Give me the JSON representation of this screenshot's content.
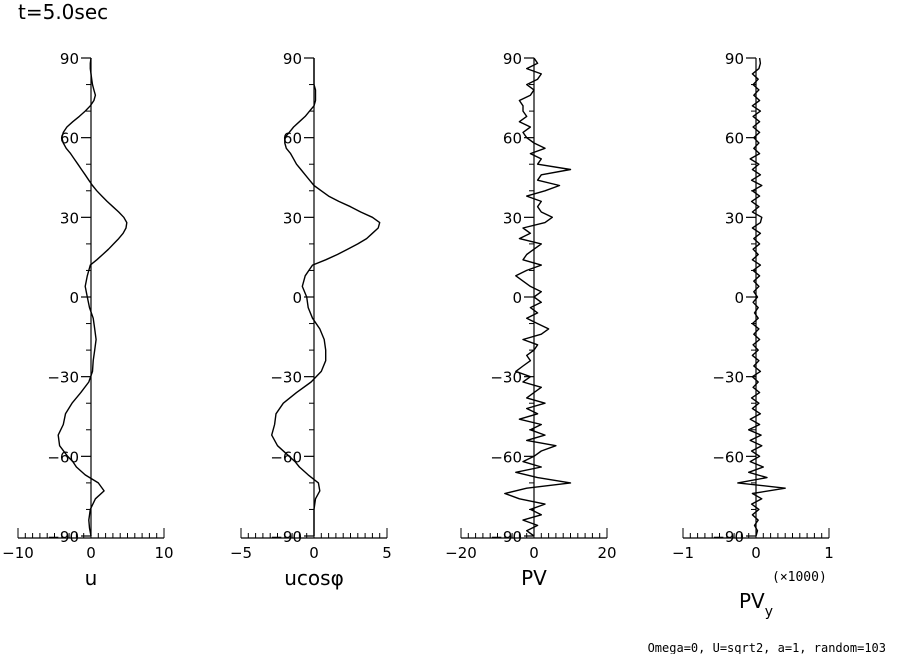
{
  "title": "t=5.0sec",
  "footer": "Omega=0, U=sqrt2, a=1, random=103",
  "chart_data": [
    {
      "type": "line",
      "xlabel": "u",
      "xlim": [
        -10,
        10
      ],
      "ylim": [
        -90,
        90
      ],
      "xticks": [
        "−10",
        "0",
        "10"
      ],
      "yticks": [
        "90",
        "60",
        "30",
        "0",
        "−30",
        "−60",
        "−90"
      ],
      "series": [
        {
          "y": [
            -90,
            -87,
            -84,
            -80,
            -76,
            -73,
            -70,
            -67,
            -64,
            -62,
            -60,
            -56,
            -52,
            -48,
            -44,
            -40,
            -36,
            -32,
            -28,
            -24,
            -20,
            -16,
            -12,
            -8,
            -4,
            0,
            4,
            8,
            12,
            14,
            16,
            18,
            20,
            22,
            24,
            26,
            28,
            30,
            32,
            34,
            36,
            38,
            40,
            42,
            44,
            46,
            48,
            50,
            52,
            54,
            56,
            58,
            60,
            62,
            64,
            66,
            68,
            70,
            72,
            74,
            76,
            78,
            80,
            82,
            84,
            86,
            88,
            90
          ],
          "x": [
            0.0,
            -0.2,
            -0.3,
            -0.1,
            0.6,
            1.8,
            1.0,
            -0.8,
            -2.0,
            -2.5,
            -3.2,
            -4.3,
            -4.5,
            -3.8,
            -3.5,
            -2.6,
            -1.4,
            -0.3,
            0.2,
            0.3,
            0.5,
            0.7,
            0.5,
            0.3,
            -0.2,
            -0.5,
            -0.8,
            -0.5,
            -0.1,
            0.8,
            1.6,
            2.4,
            3.1,
            3.8,
            4.4,
            4.8,
            4.9,
            4.5,
            3.8,
            3.0,
            2.2,
            1.5,
            0.8,
            0.2,
            -0.3,
            -0.8,
            -1.3,
            -1.8,
            -2.3,
            -2.8,
            -3.4,
            -3.8,
            -4.0,
            -3.8,
            -3.3,
            -2.5,
            -1.6,
            -0.8,
            -0.1,
            0.4,
            0.6,
            0.4,
            0.2,
            0.1,
            0.0,
            -0.1,
            -0.1,
            0.0
          ]
        }
      ]
    },
    {
      "type": "line",
      "xlabel": "ucosφ",
      "xlim": [
        -5,
        5
      ],
      "ylim": [
        -90,
        90
      ],
      "xticks": [
        "−5",
        "0",
        "5"
      ],
      "yticks": [
        "90",
        "60",
        "30",
        "0",
        "−30",
        "−60",
        "−90"
      ],
      "series": [
        {
          "y": [
            -90,
            -87,
            -84,
            -80,
            -76,
            -73,
            -70,
            -67,
            -64,
            -62,
            -60,
            -56,
            -52,
            -48,
            -44,
            -40,
            -36,
            -32,
            -28,
            -24,
            -20,
            -16,
            -12,
            -8,
            -4,
            0,
            4,
            8,
            12,
            14,
            16,
            18,
            20,
            22,
            24,
            26,
            28,
            30,
            32,
            34,
            36,
            38,
            40,
            42,
            44,
            46,
            48,
            50,
            52,
            54,
            56,
            58,
            60,
            62,
            64,
            66,
            68,
            70,
            72,
            74,
            76,
            78,
            80,
            82,
            84,
            86,
            88,
            90
          ],
          "x": [
            0.0,
            0.0,
            0.0,
            0.0,
            0.1,
            0.4,
            0.3,
            -0.4,
            -1.0,
            -1.3,
            -1.7,
            -2.5,
            -2.9,
            -2.7,
            -2.6,
            -2.1,
            -1.2,
            -0.2,
            0.5,
            0.8,
            0.8,
            0.7,
            0.4,
            -0.1,
            -0.4,
            -0.5,
            -0.8,
            -0.6,
            -0.1,
            0.8,
            1.6,
            2.3,
            3.0,
            3.6,
            4.0,
            4.4,
            4.5,
            4.0,
            3.2,
            2.5,
            1.7,
            1.0,
            0.5,
            0.0,
            -0.3,
            -0.6,
            -0.9,
            -1.2,
            -1.4,
            -1.6,
            -1.9,
            -2.0,
            -2.0,
            -1.7,
            -1.4,
            -1.0,
            -0.6,
            -0.3,
            0.0,
            0.1,
            0.1,
            0.1,
            0.0,
            0.0,
            0.0,
            0.0,
            0.0,
            0.0
          ]
        }
      ]
    },
    {
      "type": "line",
      "xlabel": "PV",
      "xlim": [
        -20,
        20
      ],
      "ylim": [
        -90,
        90
      ],
      "xticks": [
        "−20",
        "0",
        "20"
      ],
      "yticks": [
        "90",
        "60",
        "30",
        "0",
        "−30",
        "−60",
        "−90"
      ],
      "series": [
        {
          "y": [
            -90,
            -88,
            -86,
            -84,
            -82,
            -80,
            -78,
            -76,
            -74,
            -72,
            -70,
            -68,
            -66,
            -64,
            -62,
            -60,
            -58,
            -56,
            -54,
            -52,
            -50,
            -48,
            -46,
            -44,
            -42,
            -40,
            -38,
            -36,
            -34,
            -32,
            -30,
            -28,
            -26,
            -24,
            -22,
            -20,
            -18,
            -16,
            -14,
            -12,
            -10,
            -8,
            -6,
            -4,
            -2,
            0,
            2,
            4,
            6,
            8,
            10,
            12,
            14,
            16,
            18,
            20,
            22,
            24,
            26,
            28,
            30,
            32,
            34,
            36,
            38,
            40,
            42,
            44,
            46,
            48,
            50,
            52,
            54,
            56,
            58,
            60,
            62,
            64,
            66,
            68,
            70,
            72,
            74,
            76,
            78,
            80,
            82,
            84,
            86,
            88,
            90
          ],
          "x": [
            0,
            -2,
            1,
            -3,
            2,
            -1,
            3,
            -4,
            -8,
            -2,
            10,
            1,
            -5,
            2,
            -3,
            0,
            2,
            6,
            -2,
            3,
            -1,
            2,
            -4,
            1,
            -2,
            3,
            -2,
            0,
            2,
            -3,
            -1,
            -5,
            -3,
            -1,
            -2,
            0,
            1,
            -3,
            2,
            4,
            1,
            -2,
            1,
            -1,
            2,
            0,
            2,
            -1,
            -3,
            -5,
            -2,
            2,
            -3,
            -2,
            0,
            2,
            -4,
            -1,
            -3,
            3,
            5,
            2,
            1,
            2,
            -2,
            3,
            7,
            1,
            2,
            10,
            1,
            2,
            -1,
            3,
            0,
            -2,
            -3,
            -1,
            -4,
            -2,
            -3,
            -3,
            -4,
            -1,
            0,
            -2,
            1,
            2,
            -2,
            1,
            0
          ]
        }
      ]
    },
    {
      "type": "line",
      "xlabel": "PV",
      "xlabel_sub": "y",
      "multiplier": "(×1000)",
      "xlim": [
        -1,
        1
      ],
      "ylim": [
        -90,
        90
      ],
      "xticks": [
        "−1",
        "0",
        "1"
      ],
      "yticks": [
        "90",
        "60",
        "30",
        "0",
        "−30",
        "−60",
        "−90"
      ],
      "series": [
        {
          "y": [
            -90,
            -88,
            -86,
            -84,
            -82,
            -80,
            -78,
            -76,
            -74,
            -72,
            -70,
            -68,
            -66,
            -64,
            -62,
            -60,
            -58,
            -56,
            -54,
            -52,
            -50,
            -48,
            -46,
            -44,
            -42,
            -40,
            -38,
            -36,
            -34,
            -32,
            -30,
            -28,
            -26,
            -24,
            -22,
            -20,
            -18,
            -16,
            -14,
            -12,
            -10,
            -8,
            -6,
            -4,
            -2,
            0,
            2,
            4,
            6,
            8,
            10,
            12,
            14,
            16,
            18,
            20,
            22,
            24,
            26,
            28,
            30,
            32,
            34,
            36,
            38,
            40,
            42,
            44,
            46,
            48,
            50,
            52,
            54,
            56,
            58,
            60,
            62,
            64,
            66,
            68,
            70,
            72,
            74,
            76,
            78,
            80,
            82,
            84,
            86,
            88,
            90
          ],
          "x": [
            0,
            0.02,
            -0.02,
            0.03,
            -0.05,
            0.04,
            -0.06,
            0.08,
            -0.05,
            0.4,
            -0.25,
            0.15,
            -0.1,
            0.1,
            -0.08,
            0.05,
            -0.06,
            0.08,
            -0.08,
            0.07,
            -0.1,
            0.05,
            -0.08,
            0.06,
            -0.05,
            0.04,
            -0.06,
            0.05,
            -0.04,
            0.03,
            -0.05,
            0.06,
            -0.03,
            0.04,
            -0.05,
            0.03,
            -0.04,
            0.05,
            -0.03,
            0.04,
            -0.05,
            0.03,
            -0.02,
            0.03,
            -0.04,
            0.02,
            -0.03,
            0.04,
            -0.03,
            0.05,
            -0.04,
            0.06,
            -0.05,
            0.03,
            -0.04,
            0.05,
            -0.03,
            0.06,
            -0.05,
            0.06,
            0.08,
            -0.05,
            0.04,
            -0.06,
            0.05,
            -0.05,
            0.08,
            -0.06,
            0.06,
            -0.05,
            0.04,
            -0.08,
            0.05,
            -0.03,
            0.04,
            -0.03,
            0.05,
            -0.04,
            0.05,
            -0.04,
            0.06,
            -0.05,
            0.05,
            -0.03,
            0.04,
            -0.04,
            0.03,
            -0.05,
            0.04,
            0.06,
            0.05
          ]
        }
      ]
    }
  ]
}
